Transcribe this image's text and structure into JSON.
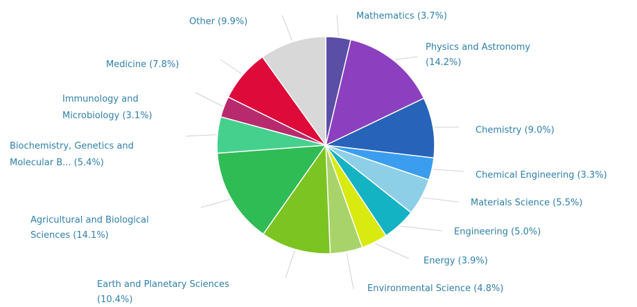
{
  "chart_data": {
    "type": "pie",
    "start_angle_deg": 0,
    "direction": "clockwise",
    "slices": [
      {
        "label": "Mathematics",
        "value": 3.7,
        "display": [
          "Mathematics (3.7%)"
        ],
        "color": "#5b4ea6"
      },
      {
        "label": "Physics and Astronomy",
        "value": 14.2,
        "display": [
          "Physics and Astronomy",
          "(14.2%)"
        ],
        "color": "#8c3fbf"
      },
      {
        "label": "Chemistry",
        "value": 9.0,
        "display": [
          "Chemistry (9.0%)"
        ],
        "color": "#2763b8"
      },
      {
        "label": "Chemical Engineering",
        "value": 3.3,
        "display": [
          "Chemical Engineering (3.3%)"
        ],
        "color": "#3a9df0"
      },
      {
        "label": "Materials Science",
        "value": 5.5,
        "display": [
          "Materials Science (5.5%)"
        ],
        "color": "#8dcfe6"
      },
      {
        "label": "Engineering",
        "value": 5.0,
        "display": [
          "Engineering (5.0%)"
        ],
        "color": "#14b3c4"
      },
      {
        "label": "Energy",
        "value": 3.9,
        "display": [
          "Energy (3.9%)"
        ],
        "color": "#d9ea10"
      },
      {
        "label": "Environmental Science",
        "value": 4.8,
        "display": [
          "Environmental Science (4.8%)"
        ],
        "color": "#a8d36a"
      },
      {
        "label": "Earth and Planetary Sciences",
        "value": 10.4,
        "display": [
          "Earth and Planetary Sciences",
          "(10.4%)"
        ],
        "color": "#7cc422"
      },
      {
        "label": "Agricultural and Biological Sciences",
        "value": 14.1,
        "display": [
          "Agricultural and Biological",
          "Sciences (14.1%)"
        ],
        "color": "#2fbc55"
      },
      {
        "label": "Biochemistry, Genetics and Molecular B...",
        "value": 5.4,
        "display": [
          "Biochemistry, Genetics and",
          "Molecular B... (5.4%)"
        ],
        "color": "#46d08e"
      },
      {
        "label": "Immunology and Microbiology",
        "value": 3.1,
        "display": [
          "Immunology and",
          "Microbiology (3.1%)"
        ],
        "color": "#b82a6e"
      },
      {
        "label": "Medicine",
        "value": 7.8,
        "display": [
          "Medicine (7.8%)"
        ],
        "color": "#de0a3a"
      },
      {
        "label": "Other",
        "value": 9.9,
        "display": [
          "Other (9.9%)"
        ],
        "color": "#d8d8d8"
      }
    ]
  }
}
